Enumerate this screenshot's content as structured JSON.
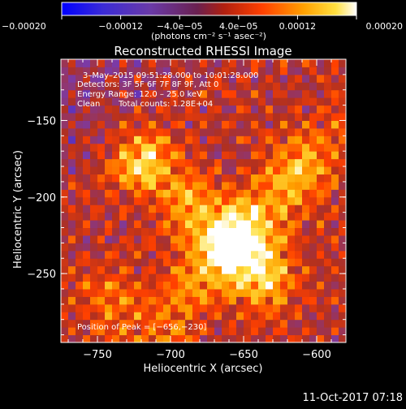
{
  "chart_data": {
    "type": "heatmap",
    "title": "Reconstructed RHESSI Image",
    "xlabel": "Heliocentric X (arcsec)",
    "ylabel": "Heliocentric Y (arcsec)",
    "xlim": [
      -775,
      -580
    ],
    "ylim": [
      -295,
      -110
    ],
    "x_ticks": [
      -750,
      -700,
      -650,
      -600
    ],
    "x_tick_labels": [
      "−750",
      "−700",
      "−650",
      "−600"
    ],
    "y_ticks": [
      -150,
      -200,
      -250
    ],
    "y_tick_labels": [
      "−150",
      "−200",
      "−250"
    ],
    "colorbar": {
      "range": [
        -0.0002,
        0.0002
      ],
      "ticks": [
        -0.0002,
        -0.00012,
        -4e-05,
        4e-05,
        0.00012,
        0.0002
      ],
      "tick_labels": [
        "−0.00020",
        "−0.00012",
        "−4.0e−05",
        "4.0e−05",
        "0.00012",
        "0.00020"
      ],
      "unit_label": "(photons cm⁻² s⁻¹ asec⁻²)",
      "colormap": [
        "#0000ff",
        "#3b2bd6",
        "#7a3aa8",
        "#b03020",
        "#ff4000",
        "#ffa000",
        "#ffe040",
        "#ffffff"
      ]
    },
    "annotations": {
      "time_range": "3–May–2015 09:51:28.000 to 10:01:28.000",
      "detectors": "Detectors: 3F 5F 6F 7F 8F 9F, Att 0",
      "energy_range": "Energy Range: 12.0 – 25.0 keV",
      "method": "Clean",
      "total_counts": "Total counts: 1.28E+04",
      "peak_position": "Position of Peak = [−656,−230]"
    },
    "peak": [
      -656,
      -230
    ],
    "sources": [
      {
        "x": -656,
        "y": -230,
        "value": 0.0002
      },
      {
        "x": -718,
        "y": -178,
        "value": 0.00016
      },
      {
        "x": -686,
        "y": -205,
        "value": 0.00011
      },
      {
        "x": -634,
        "y": -255,
        "value": 0.00013
      },
      {
        "x": -742,
        "y": -265,
        "value": 7e-05
      },
      {
        "x": -612,
        "y": -180,
        "value": 6e-05
      }
    ]
  },
  "footer": {
    "timestamp": "11-Oct-2017 07:18"
  }
}
